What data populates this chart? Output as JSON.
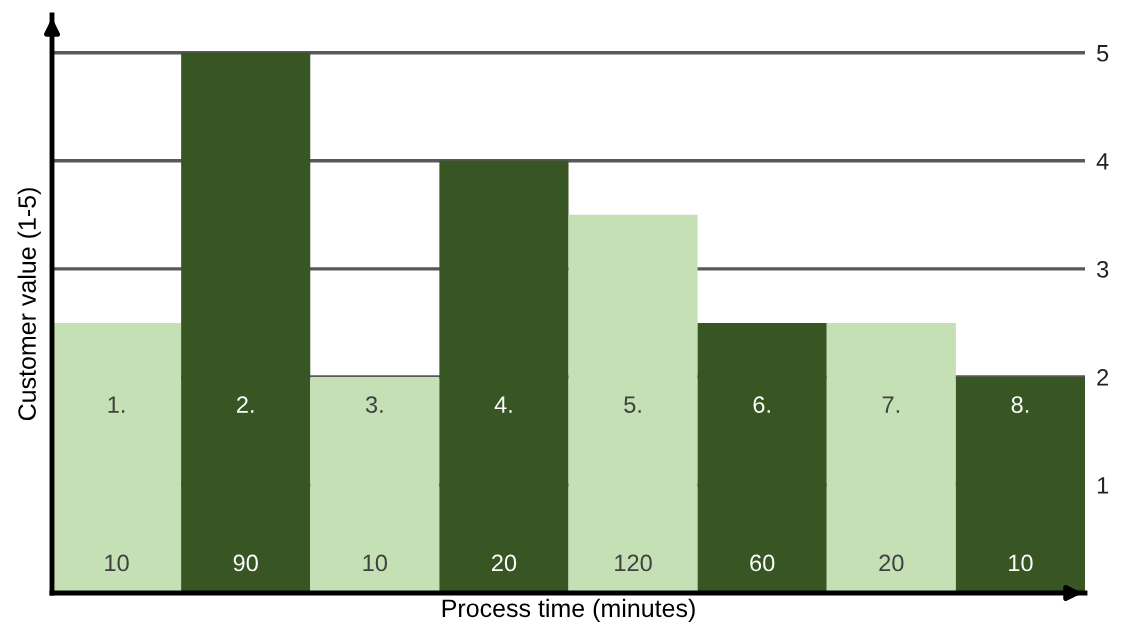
{
  "chart_data": {
    "type": "bar",
    "xlabel": "Process time (minutes)",
    "ylabel": "Customer value (1-5)",
    "categories": [
      "1.",
      "2.",
      "3.",
      "4.",
      "5.",
      "6.",
      "7.",
      "8."
    ],
    "values": [
      2.5,
      5,
      2,
      4,
      3.5,
      2.5,
      2.5,
      2
    ],
    "colors": [
      "#c5e0b4",
      "#375623",
      "#c5e0b4",
      "#375623",
      "#c5e0b4",
      "#375623",
      "#c5e0b4",
      "#375623"
    ],
    "ylim": [
      0,
      5.35
    ],
    "yticks": [
      1,
      2,
      3,
      4,
      5
    ],
    "grid": "y",
    "annotations": [
      "10",
      "90",
      "10",
      "20",
      "120",
      "60",
      "20",
      "10"
    ]
  }
}
